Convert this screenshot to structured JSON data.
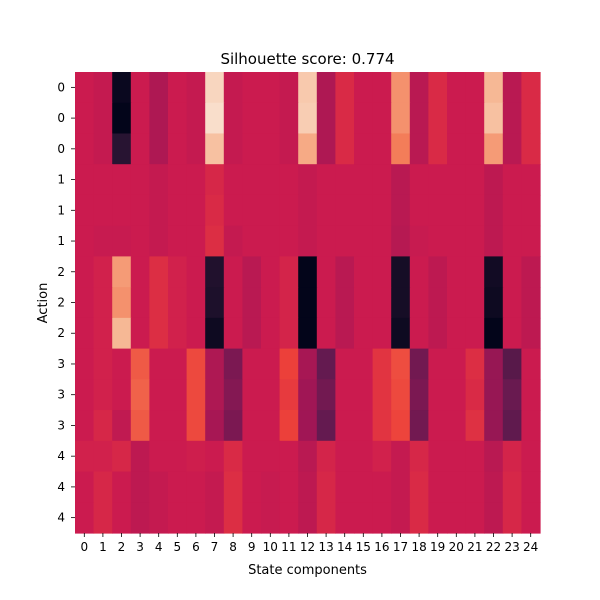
{
  "chart_data": {
    "type": "heatmap",
    "title": "Silhouette score: 0.774",
    "xlabel": "State components",
    "ylabel": "Action",
    "x_tick_labels": [
      "0",
      "1",
      "2",
      "3",
      "4",
      "5",
      "6",
      "7",
      "8",
      "9",
      "10",
      "11",
      "12",
      "13",
      "14",
      "15",
      "16",
      "17",
      "18",
      "19",
      "20",
      "21",
      "22",
      "23",
      "24"
    ],
    "y_tick_labels": [
      "0",
      "0",
      "0",
      "1",
      "1",
      "1",
      "2",
      "2",
      "2",
      "3",
      "3",
      "3",
      "4",
      "4",
      "4"
    ],
    "colormap": "rocket",
    "grid": false,
    "colorbar": false,
    "values_note_scale": "0 = darkest, 1 = lightest",
    "values": [
      [
        0.5,
        0.48,
        0.02,
        0.5,
        0.42,
        0.5,
        0.48,
        0.95,
        0.48,
        0.5,
        0.5,
        0.48,
        0.92,
        0.42,
        0.55,
        0.5,
        0.5,
        0.8,
        0.45,
        0.55,
        0.5,
        0.5,
        0.88,
        0.45,
        0.55
      ],
      [
        0.5,
        0.48,
        0.0,
        0.5,
        0.42,
        0.5,
        0.48,
        0.97,
        0.48,
        0.5,
        0.5,
        0.48,
        0.93,
        0.42,
        0.55,
        0.5,
        0.5,
        0.8,
        0.45,
        0.55,
        0.5,
        0.5,
        0.9,
        0.45,
        0.55
      ],
      [
        0.5,
        0.48,
        0.1,
        0.5,
        0.42,
        0.5,
        0.48,
        0.9,
        0.48,
        0.5,
        0.5,
        0.48,
        0.85,
        0.42,
        0.55,
        0.5,
        0.5,
        0.76,
        0.45,
        0.55,
        0.5,
        0.5,
        0.82,
        0.45,
        0.55
      ],
      [
        0.5,
        0.5,
        0.5,
        0.5,
        0.48,
        0.5,
        0.5,
        0.54,
        0.5,
        0.5,
        0.5,
        0.5,
        0.48,
        0.5,
        0.5,
        0.5,
        0.5,
        0.45,
        0.5,
        0.5,
        0.5,
        0.5,
        0.46,
        0.5,
        0.5
      ],
      [
        0.5,
        0.5,
        0.5,
        0.5,
        0.48,
        0.5,
        0.5,
        0.55,
        0.5,
        0.5,
        0.5,
        0.5,
        0.48,
        0.5,
        0.5,
        0.5,
        0.5,
        0.45,
        0.5,
        0.5,
        0.5,
        0.5,
        0.46,
        0.5,
        0.5
      ],
      [
        0.5,
        0.49,
        0.49,
        0.5,
        0.48,
        0.5,
        0.5,
        0.56,
        0.48,
        0.5,
        0.5,
        0.5,
        0.48,
        0.5,
        0.5,
        0.5,
        0.5,
        0.44,
        0.49,
        0.5,
        0.5,
        0.5,
        0.46,
        0.5,
        0.5
      ],
      [
        0.5,
        0.52,
        0.82,
        0.5,
        0.56,
        0.52,
        0.5,
        0.08,
        0.5,
        0.45,
        0.5,
        0.53,
        0.0,
        0.5,
        0.45,
        0.5,
        0.5,
        0.05,
        0.5,
        0.46,
        0.5,
        0.5,
        0.04,
        0.5,
        0.46
      ],
      [
        0.5,
        0.52,
        0.8,
        0.5,
        0.56,
        0.52,
        0.5,
        0.07,
        0.5,
        0.45,
        0.5,
        0.53,
        0.0,
        0.5,
        0.45,
        0.5,
        0.5,
        0.05,
        0.5,
        0.46,
        0.5,
        0.5,
        0.03,
        0.5,
        0.46
      ],
      [
        0.5,
        0.52,
        0.88,
        0.5,
        0.56,
        0.52,
        0.5,
        0.03,
        0.5,
        0.45,
        0.5,
        0.53,
        0.0,
        0.5,
        0.45,
        0.5,
        0.5,
        0.03,
        0.5,
        0.46,
        0.5,
        0.5,
        0.0,
        0.5,
        0.46
      ],
      [
        0.5,
        0.52,
        0.5,
        0.68,
        0.5,
        0.5,
        0.64,
        0.42,
        0.3,
        0.5,
        0.5,
        0.62,
        0.4,
        0.25,
        0.5,
        0.5,
        0.58,
        0.65,
        0.28,
        0.5,
        0.5,
        0.56,
        0.36,
        0.22,
        0.5
      ],
      [
        0.5,
        0.52,
        0.5,
        0.7,
        0.5,
        0.5,
        0.64,
        0.42,
        0.32,
        0.5,
        0.5,
        0.6,
        0.38,
        0.28,
        0.5,
        0.5,
        0.58,
        0.64,
        0.3,
        0.5,
        0.5,
        0.55,
        0.36,
        0.26,
        0.5
      ],
      [
        0.5,
        0.54,
        0.47,
        0.68,
        0.5,
        0.5,
        0.64,
        0.4,
        0.3,
        0.5,
        0.5,
        0.62,
        0.38,
        0.25,
        0.5,
        0.5,
        0.58,
        0.63,
        0.28,
        0.5,
        0.5,
        0.57,
        0.36,
        0.24,
        0.5
      ],
      [
        0.52,
        0.52,
        0.54,
        0.46,
        0.5,
        0.5,
        0.51,
        0.5,
        0.55,
        0.5,
        0.5,
        0.5,
        0.45,
        0.53,
        0.5,
        0.5,
        0.52,
        0.48,
        0.54,
        0.5,
        0.5,
        0.5,
        0.45,
        0.53,
        0.5
      ],
      [
        0.5,
        0.54,
        0.5,
        0.46,
        0.48,
        0.5,
        0.5,
        0.48,
        0.56,
        0.5,
        0.49,
        0.5,
        0.46,
        0.54,
        0.5,
        0.5,
        0.5,
        0.48,
        0.55,
        0.5,
        0.5,
        0.5,
        0.46,
        0.54,
        0.5
      ],
      [
        0.5,
        0.54,
        0.5,
        0.46,
        0.48,
        0.5,
        0.5,
        0.48,
        0.56,
        0.5,
        0.49,
        0.5,
        0.46,
        0.54,
        0.5,
        0.5,
        0.5,
        0.48,
        0.55,
        0.5,
        0.5,
        0.5,
        0.46,
        0.54,
        0.5
      ]
    ]
  }
}
